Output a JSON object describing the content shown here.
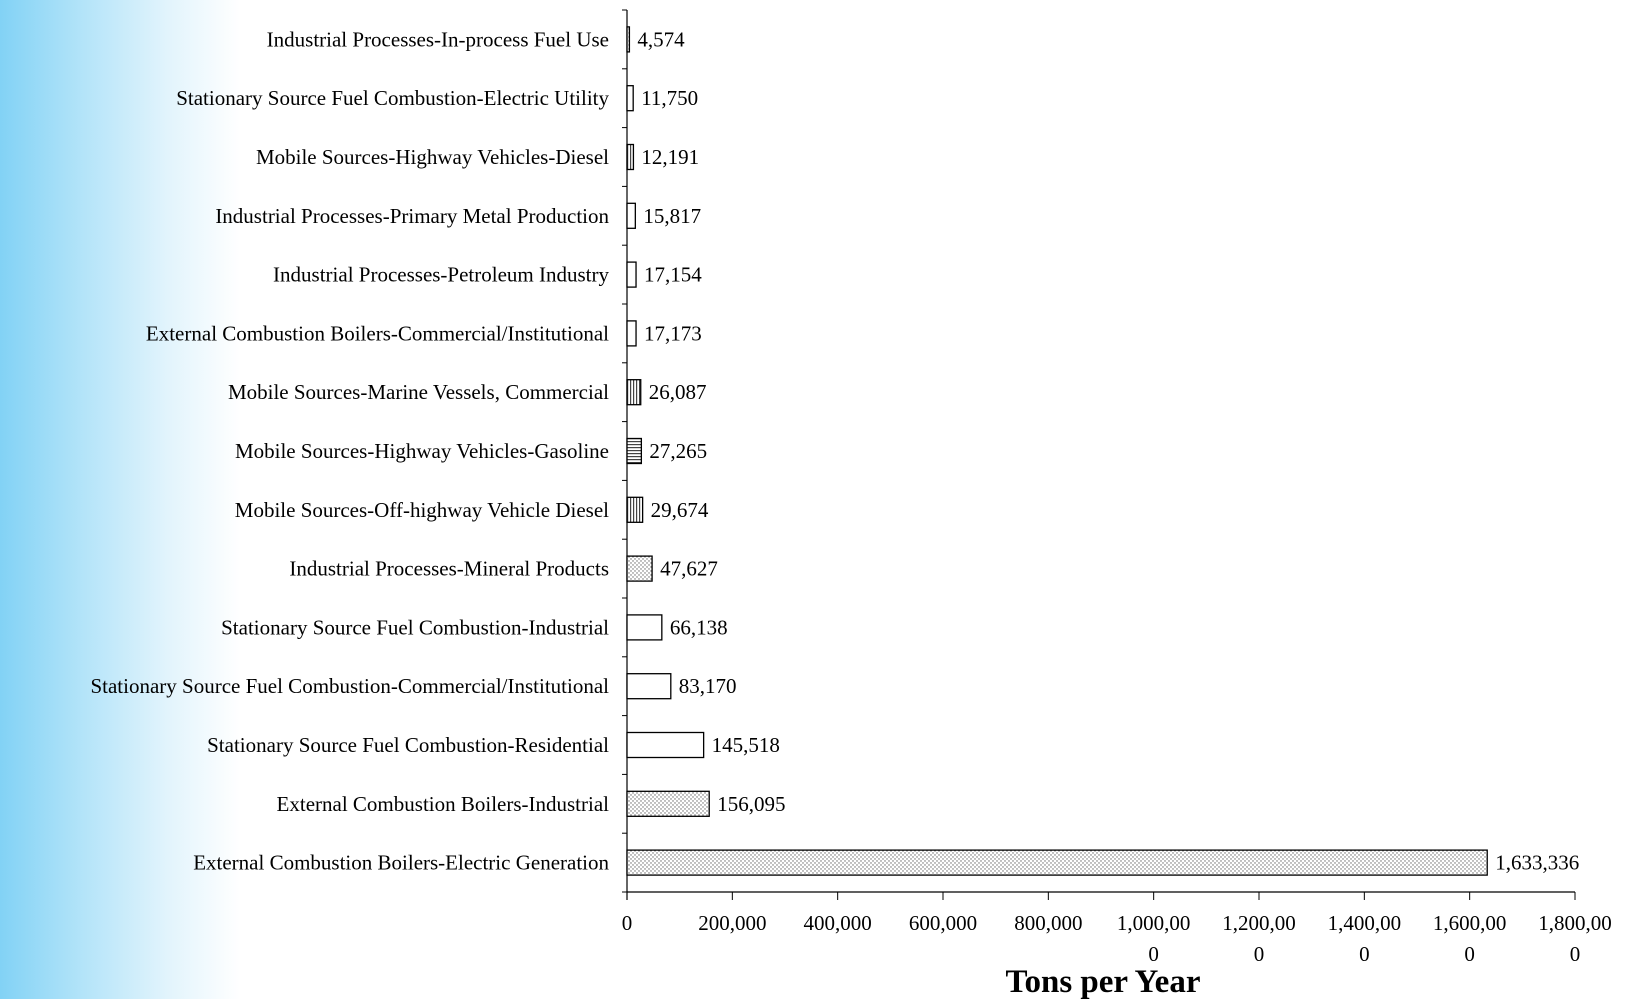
{
  "chart_data": {
    "type": "bar",
    "orientation": "horizontal",
    "title": "",
    "xlabel": "Tons per Year",
    "ylabel": "",
    "xlim": [
      0,
      1800000
    ],
    "grid": false,
    "categories": [
      "Industrial Processes-In-process Fuel Use",
      "Stationary Source Fuel Combustion-Electric Utility",
      "Mobile Sources-Highway Vehicles-Diesel",
      "Industrial Processes-Primary Metal Production",
      "Industrial Processes-Petroleum Industry",
      "External Combustion Boilers-Commercial/Institutional",
      "Mobile Sources-Marine Vessels, Commercial",
      "Mobile Sources-Highway Vehicles-Gasoline",
      "Mobile Sources-Off-highway Vehicle Diesel",
      "Industrial Processes-Mineral Products",
      "Stationary Source Fuel Combustion-Industrial",
      "Stationary Source Fuel Combustion-Commercial/Institutional",
      "Stationary Source Fuel Combustion-Residential",
      "External Combustion Boilers-Industrial",
      "External Combustion Boilers-Electric Generation"
    ],
    "values": [
      4574,
      11750,
      12191,
      15817,
      17154,
      17173,
      26087,
      27265,
      29674,
      47627,
      66138,
      83170,
      145518,
      156095,
      1633336
    ],
    "value_labels": [
      "4,574",
      "11,750",
      "12,191",
      "15,817",
      "17,154",
      "17,173",
      "26,087",
      "27,265",
      "29,674",
      "47,627",
      "66,138",
      "83,170",
      "145,518",
      "156,095",
      "1,633,336"
    ],
    "patterns": [
      "dots",
      "blank",
      "vlines",
      "blank",
      "blank",
      "blank",
      "vlines",
      "hlines",
      "vlines",
      "dots",
      "blank",
      "blank",
      "blank",
      "dots",
      "dots"
    ],
    "xticks": [
      0,
      200000,
      400000,
      600000,
      800000,
      1000000,
      1200000,
      1400000,
      1600000,
      1800000
    ],
    "xtick_labels": [
      [
        "0"
      ],
      [
        "200,000"
      ],
      [
        "400,000"
      ],
      [
        "600,000"
      ],
      [
        "800,000"
      ],
      [
        "1,000,00",
        "0"
      ],
      [
        "1,200,00",
        "0"
      ],
      [
        "1,400,00",
        "0"
      ],
      [
        "1,600,00",
        "0"
      ],
      [
        "1,800,00",
        "0"
      ]
    ],
    "colors": {
      "bar_fill": "#ffffff",
      "bar_stroke": "#000000",
      "pattern": "#666666",
      "background_gradient": "#82d2f5"
    }
  }
}
